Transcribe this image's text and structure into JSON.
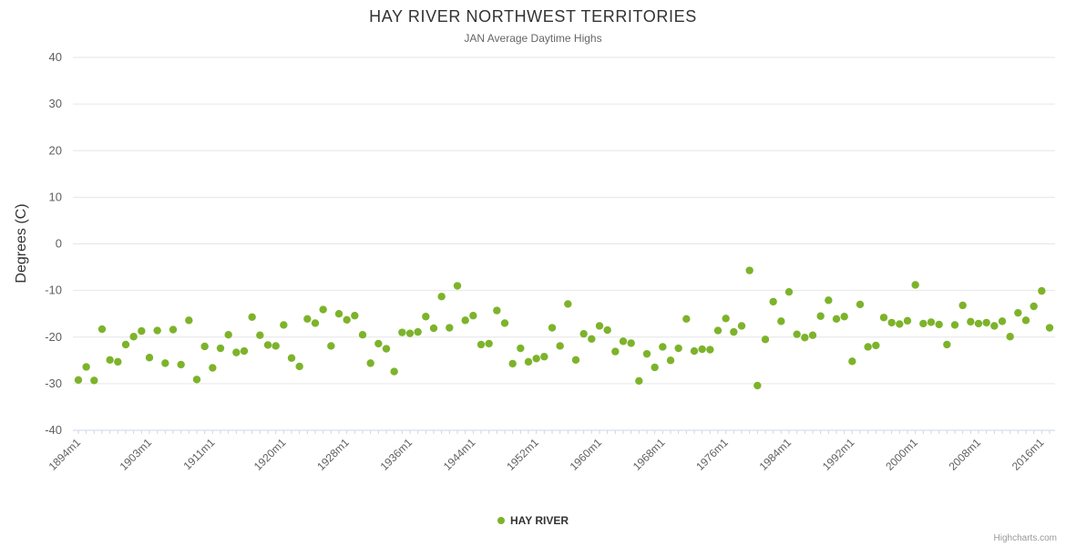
{
  "title": "HAY RIVER NORTHWEST TERRITORIES",
  "subtitle": "JAN Average Daytime Highs",
  "y_axis_title": "Degrees (C)",
  "legend": {
    "label": "HAY RIVER"
  },
  "credit": "Highcharts.com",
  "colors": {
    "point": "#7db32b",
    "grid": "#e6e6e6",
    "axis": "#ccd6eb",
    "label": "#606060",
    "title": "#333333"
  },
  "chart_data": {
    "type": "scatter",
    "title": "HAY RIVER NORTHWEST TERRITORIES",
    "subtitle": "JAN Average Daytime Highs",
    "ylabel": "Degrees (C)",
    "xlabel": "",
    "ylim": [
      -40,
      40
    ],
    "y_tick_step": 10,
    "grid": true,
    "legend_position": "bottom-center",
    "x_tick_labels": [
      "1894m1",
      "1903m1",
      "1911m1",
      "1920m1",
      "1928m1",
      "1936m1",
      "1944m1",
      "1952m1",
      "1960m1",
      "1968m1",
      "1976m1",
      "1984m1",
      "1992m1",
      "2000m1",
      "2008m1",
      "2016m1"
    ],
    "series": [
      {
        "name": "HAY RIVER",
        "color": "#7db32b",
        "start_year": 1894,
        "category_suffix": "m1",
        "values": [
          -29.2,
          -26.4,
          -29.3,
          -18.3,
          -24.9,
          -25.3,
          -21.6,
          -19.9,
          -18.7,
          -24.4,
          -18.6,
          -25.6,
          -18.4,
          -25.9,
          -16.4,
          -29.1,
          -22.0,
          -26.6,
          -22.4,
          -19.5,
          -23.3,
          -23.0,
          -15.7,
          -19.6,
          -21.7,
          -21.9,
          -17.4,
          -24.5,
          -26.3,
          -16.1,
          -17.0,
          -14.1,
          -21.9,
          -15.0,
          -16.3,
          -15.4,
          -19.5,
          -25.6,
          -21.4,
          -22.5,
          -27.4,
          -19.0,
          -19.2,
          -18.9,
          -15.6,
          -18.1,
          -11.3,
          -18.0,
          -9.0,
          -16.4,
          -15.4,
          -21.6,
          -21.4,
          -14.3,
          -17.0,
          -25.7,
          -22.4,
          -25.3,
          -24.6,
          -24.2,
          -18.0,
          -21.9,
          -12.9,
          -24.9,
          -19.3,
          -20.4,
          -17.6,
          -18.5,
          -23.1,
          -20.9,
          -21.3,
          -29.4,
          -23.6,
          -26.5,
          -22.1,
          -25.0,
          -22.4,
          -16.1,
          -23.0,
          -22.6,
          -22.7,
          -18.6,
          -16.0,
          -18.9,
          -17.6,
          -5.7,
          -30.4,
          -20.5,
          -12.4,
          -16.6,
          -10.3,
          -19.4,
          -20.1,
          -19.6,
          -15.5,
          -12.1,
          -16.1,
          -15.6,
          -25.2,
          -13.0,
          -22.1,
          -21.8,
          -15.8,
          -16.9,
          -17.2,
          -16.5,
          -8.8,
          -17.1,
          -16.8,
          -17.3,
          -21.6,
          -17.4,
          -13.2,
          -16.7,
          -17.1,
          -16.9,
          -17.6,
          -16.6,
          -19.9,
          -14.8,
          -16.4,
          -13.4,
          -10.1,
          -18.0
        ]
      }
    ]
  }
}
